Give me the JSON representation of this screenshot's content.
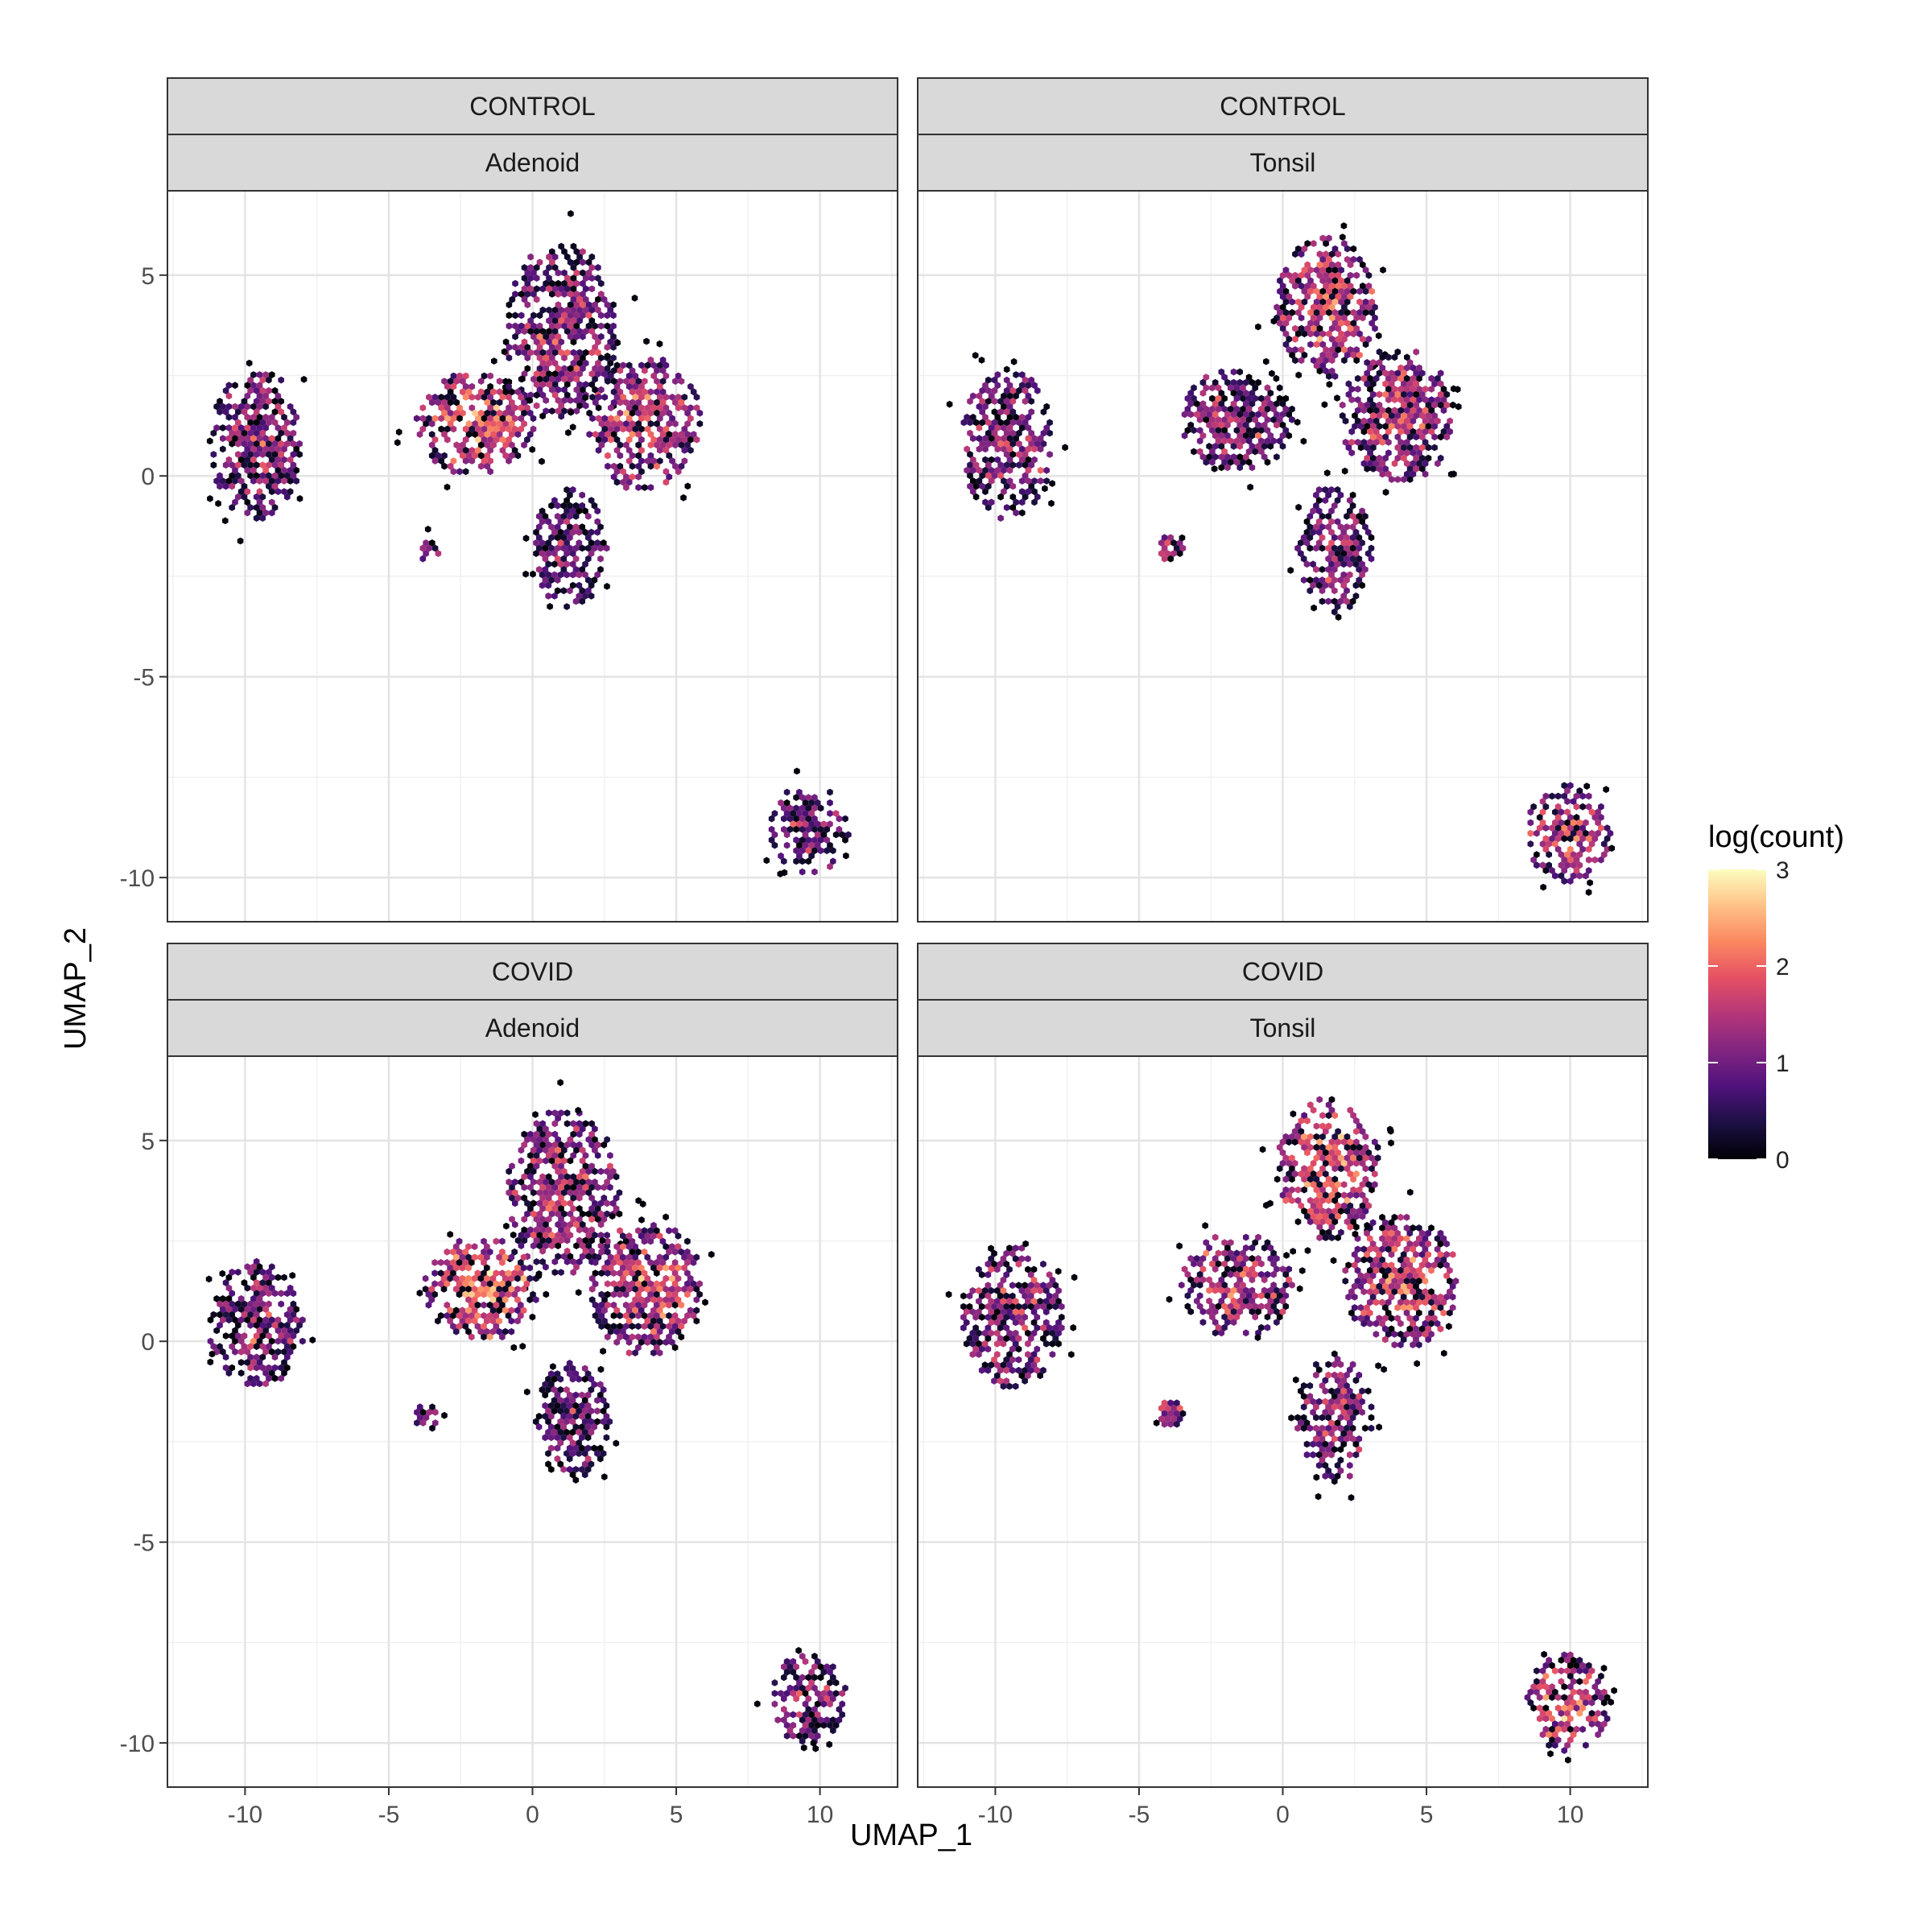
{
  "chart_data": {
    "type": "heatmap",
    "subtype": "hexbin-facet",
    "xlabel": "UMAP_1",
    "ylabel": "UMAP_2",
    "xlim": [
      -12.7,
      12.7
    ],
    "ylim": [
      -11.1,
      7.1
    ],
    "x_ticks": [
      -10,
      -5,
      0,
      5,
      10
    ],
    "y_ticks": [
      -10,
      -5,
      0,
      5
    ],
    "x_tick_labels": [
      "-10",
      "-5",
      "0",
      "5",
      "10"
    ],
    "y_tick_labels": [
      "-10",
      "-5",
      "0",
      "5"
    ],
    "grid": true,
    "legend": {
      "title": "log(count)",
      "position": "right",
      "range": [
        0,
        3
      ],
      "breaks": [
        0,
        1,
        2,
        3
      ],
      "break_labels": [
        "0",
        "1",
        "2",
        "3"
      ],
      "palette": [
        "#000004",
        "#1c1044",
        "#4f127b",
        "#812581",
        "#b5367a",
        "#e55064",
        "#fb8761",
        "#fec287",
        "#fcfdbf"
      ]
    },
    "panels": [
      {
        "strip_top": "CONTROL",
        "strip_bottom": "Adenoid",
        "clusters": [
          {
            "x": -9.6,
            "y": 0.8,
            "rx": 1.6,
            "ry": 1.9,
            "level": 1.3,
            "n": 190
          },
          {
            "x": 1.0,
            "y": 3.6,
            "rx": 2.0,
            "ry": 2.2,
            "level": 1.4,
            "n": 260
          },
          {
            "x": -2.0,
            "y": 1.3,
            "rx": 2.1,
            "ry": 1.3,
            "level": 1.9,
            "n": 200
          },
          {
            "x": 3.9,
            "y": 1.3,
            "rx": 2.0,
            "ry": 1.7,
            "level": 1.6,
            "n": 230
          },
          {
            "x": 1.3,
            "y": -1.8,
            "rx": 1.3,
            "ry": 1.5,
            "level": 1.0,
            "n": 130
          },
          {
            "x": -3.6,
            "y": -1.8,
            "rx": 0.5,
            "ry": 0.4,
            "level": 1.4,
            "n": 22
          },
          {
            "x": 9.6,
            "y": -8.8,
            "rx": 1.4,
            "ry": 1.1,
            "level": 1.1,
            "n": 130
          }
        ]
      },
      {
        "strip_top": "CONTROL",
        "strip_bottom": "Tonsil",
        "clusters": [
          {
            "x": -9.6,
            "y": 0.8,
            "rx": 1.6,
            "ry": 1.9,
            "level": 1.3,
            "n": 190
          },
          {
            "x": 1.5,
            "y": 4.2,
            "rx": 1.8,
            "ry": 1.8,
            "level": 1.7,
            "n": 240
          },
          {
            "x": -1.6,
            "y": 1.4,
            "rx": 2.0,
            "ry": 1.3,
            "level": 1.3,
            "n": 180
          },
          {
            "x": 4.0,
            "y": 1.5,
            "rx": 2.0,
            "ry": 1.7,
            "level": 1.5,
            "n": 220
          },
          {
            "x": 1.8,
            "y": -1.8,
            "rx": 1.3,
            "ry": 1.6,
            "level": 1.3,
            "n": 150
          },
          {
            "x": -3.9,
            "y": -1.8,
            "rx": 0.5,
            "ry": 0.4,
            "level": 1.5,
            "n": 22
          },
          {
            "x": 9.9,
            "y": -8.9,
            "rx": 1.5,
            "ry": 1.2,
            "level": 1.6,
            "n": 150
          }
        ]
      },
      {
        "strip_top": "COVID",
        "strip_bottom": "Adenoid",
        "clusters": [
          {
            "x": -9.6,
            "y": 0.4,
            "rx": 1.7,
            "ry": 1.6,
            "level": 1.2,
            "n": 140
          },
          {
            "x": 1.1,
            "y": 3.7,
            "rx": 2.0,
            "ry": 2.1,
            "level": 1.5,
            "n": 250
          },
          {
            "x": -1.8,
            "y": 1.3,
            "rx": 2.0,
            "ry": 1.3,
            "level": 2.0,
            "n": 210
          },
          {
            "x": 4.0,
            "y": 1.3,
            "rx": 2.0,
            "ry": 1.7,
            "level": 1.7,
            "n": 230
          },
          {
            "x": 1.4,
            "y": -2.0,
            "rx": 1.3,
            "ry": 1.5,
            "level": 1.0,
            "n": 120
          },
          {
            "x": -3.7,
            "y": -1.9,
            "rx": 0.5,
            "ry": 0.4,
            "level": 1.4,
            "n": 20
          },
          {
            "x": 9.6,
            "y": -8.9,
            "rx": 1.4,
            "ry": 1.1,
            "level": 1.3,
            "n": 140
          }
        ]
      },
      {
        "strip_top": "COVID",
        "strip_bottom": "Tonsil",
        "clusters": [
          {
            "x": -9.4,
            "y": 0.6,
            "rx": 1.8,
            "ry": 1.8,
            "level": 1.3,
            "n": 170
          },
          {
            "x": 1.6,
            "y": 4.3,
            "rx": 1.8,
            "ry": 1.8,
            "level": 2.0,
            "n": 250
          },
          {
            "x": -1.6,
            "y": 1.4,
            "rx": 2.0,
            "ry": 1.3,
            "level": 1.5,
            "n": 190
          },
          {
            "x": 4.1,
            "y": 1.5,
            "rx": 2.0,
            "ry": 1.7,
            "level": 1.7,
            "n": 230
          },
          {
            "x": 1.8,
            "y": -1.9,
            "rx": 1.3,
            "ry": 1.6,
            "level": 1.4,
            "n": 150
          },
          {
            "x": -3.9,
            "y": -1.8,
            "rx": 0.5,
            "ry": 0.4,
            "level": 1.5,
            "n": 22
          },
          {
            "x": 9.9,
            "y": -9.0,
            "rx": 1.5,
            "ry": 1.2,
            "level": 1.8,
            "n": 160
          }
        ]
      }
    ]
  }
}
